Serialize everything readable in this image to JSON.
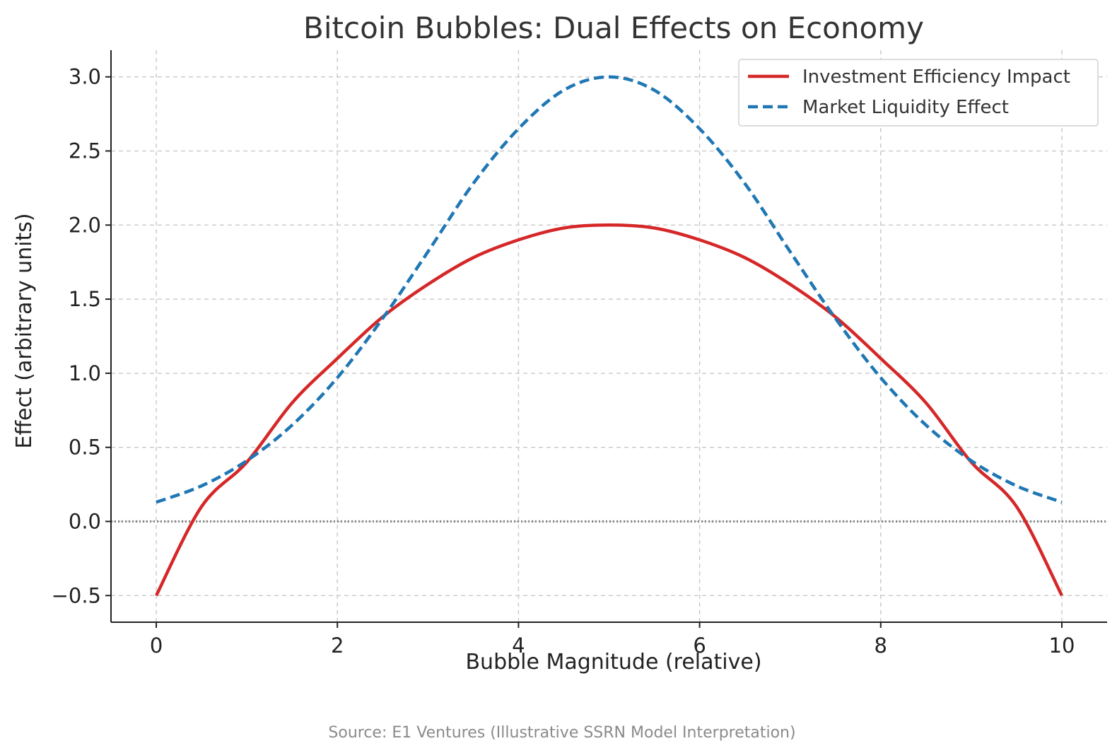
{
  "chart_data": {
    "type": "line",
    "title": "Bitcoin Bubbles: Dual Effects on Economy",
    "xlabel": "Bubble Magnitude (relative)",
    "ylabel": "Effect (arbitrary units)",
    "xlim": [
      -0.5,
      10.5
    ],
    "ylim": [
      -0.68,
      3.18
    ],
    "xticks": [
      0,
      2,
      4,
      6,
      8,
      10
    ],
    "xtick_labels": [
      "0",
      "2",
      "4",
      "6",
      "8",
      "10"
    ],
    "yticks": [
      -0.5,
      0.0,
      0.5,
      1.0,
      1.5,
      2.0,
      2.5,
      3.0
    ],
    "ytick_labels": [
      "−0.5",
      "0.0",
      "0.5",
      "1.0",
      "1.5",
      "2.0",
      "2.5",
      "3.0"
    ],
    "grid": true,
    "reference_line": {
      "y": 0,
      "style": "dotted",
      "color": "#888888"
    },
    "x": [
      0,
      0.5,
      1,
      1.5,
      2,
      2.5,
      3,
      3.5,
      4,
      4.5,
      5,
      5.5,
      6,
      6.5,
      7,
      7.5,
      8,
      8.5,
      9,
      9.5,
      10
    ],
    "series": [
      {
        "name": "Investment Efficiency Impact",
        "color": "#d62728",
        "style": "solid",
        "values": [
          -0.5,
          0.1,
          0.4,
          0.8,
          1.1,
          1.38,
          1.6,
          1.78,
          1.9,
          1.98,
          2.0,
          1.98,
          1.9,
          1.78,
          1.6,
          1.38,
          1.1,
          0.8,
          0.4,
          0.1,
          -0.5
        ]
      },
      {
        "name": "Market Liquidity Effect",
        "color": "#1f77b4",
        "style": "dashed",
        "values": [
          0.13,
          0.24,
          0.41,
          0.65,
          0.97,
          1.37,
          1.82,
          2.28,
          2.65,
          2.91,
          3.0,
          2.91,
          2.65,
          2.28,
          1.82,
          1.37,
          0.97,
          0.65,
          0.41,
          0.24,
          0.13
        ]
      }
    ],
    "legend_position": "top-right",
    "source_note": "Source: E1 Ventures (Illustrative SSRN Model Interpretation)"
  }
}
